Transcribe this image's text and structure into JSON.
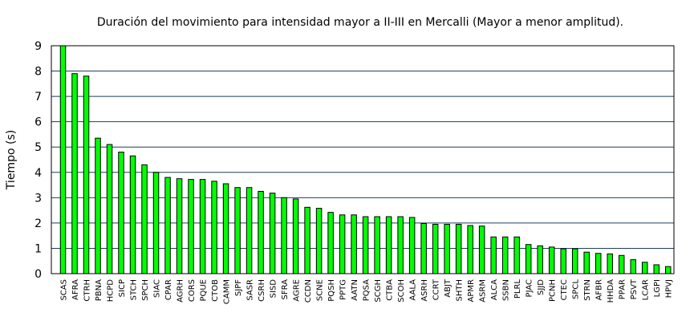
{
  "chart_data": {
    "type": "bar",
    "title": "Duración del movimiento para intensidad mayor a II-III en Mercalli (Mayor a menor amplitud).",
    "xlabel": "",
    "ylabel": "Tiempo (s)",
    "ylim": [
      0,
      9
    ],
    "yticks": [
      "0",
      "1",
      "2",
      "3",
      "4",
      "5",
      "6",
      "7",
      "8",
      "9"
    ],
    "grid": "horizontal",
    "legend": "none",
    "bar_color": "#00ff00",
    "bar_edge_color": "#000000",
    "grid_color": "#1f3f5f",
    "categories": [
      "SCAS",
      "AFRA",
      "CTRH",
      "PBNA",
      "HCPD",
      "SICP",
      "STCH",
      "SPCH",
      "SIAC",
      "CPAR",
      "AGRH",
      "CORS",
      "PQUE",
      "CTOB",
      "CAMM",
      "SJPF",
      "SASR",
      "CSRH",
      "SISD",
      "SFRA",
      "AGRE",
      "CCDN",
      "SCNE",
      "PQSH",
      "PPTG",
      "AATN",
      "PQSA",
      "SCGH",
      "CTBA",
      "SCOH",
      "AALA",
      "ASRH",
      "CCRT",
      "ABJT",
      "SHTH",
      "APMR",
      "ASRM",
      "ALCA",
      "SSBN",
      "PLRL",
      "PJAC",
      "SJJD",
      "PCNH",
      "CTEC",
      "SPCL",
      "STRN",
      "AFBR",
      "HHDA",
      "PPAR",
      "PSVT",
      "LCAR",
      "LGPI",
      "HPVJ"
    ],
    "values": [
      9.0,
      7.9,
      7.8,
      5.35,
      5.1,
      4.8,
      4.65,
      4.3,
      4.0,
      3.8,
      3.75,
      3.72,
      3.72,
      3.65,
      3.55,
      3.4,
      3.4,
      3.25,
      3.18,
      3.0,
      2.95,
      2.62,
      2.58,
      2.42,
      2.32,
      2.32,
      2.25,
      2.25,
      2.25,
      2.25,
      2.22,
      1.98,
      1.95,
      1.95,
      1.95,
      1.9,
      1.88,
      1.45,
      1.45,
      1.45,
      1.15,
      1.1,
      1.05,
      0.98,
      0.98,
      0.85,
      0.8,
      0.78,
      0.72,
      0.55,
      0.45,
      0.35,
      0.28
    ]
  }
}
